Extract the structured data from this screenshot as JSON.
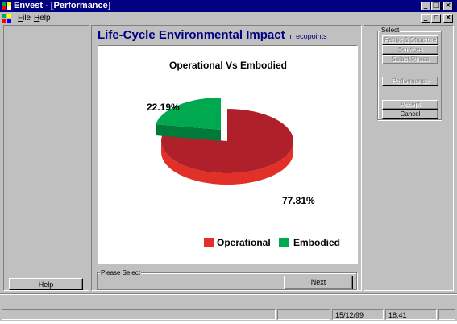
{
  "window": {
    "title": "Envest - [Performance]",
    "controls": [
      "minimize",
      "maximize",
      "close"
    ]
  },
  "menubar": {
    "items": [
      {
        "label": "File",
        "accel": "F",
        "rest": "ile"
      },
      {
        "label": "Help",
        "accel": "H",
        "rest": "elp"
      }
    ]
  },
  "main": {
    "heading": "Life-Cycle Environmental Impact",
    "heading_unit": "in ecopoints",
    "instruction_label": "Please Select",
    "next_button": "Next"
  },
  "left": {
    "help_button": "Help"
  },
  "select_panel": {
    "label": "Select",
    "buttons": [
      {
        "label": "Fabric & Structure",
        "enabled": false
      },
      {
        "label": "Services",
        "enabled": false
      },
      {
        "label": "Select Phase",
        "enabled": false
      }
    ],
    "performance_button": {
      "label": "Performance",
      "enabled": false
    },
    "accept_button": {
      "label": "Accept",
      "enabled": false
    },
    "cancel_button": {
      "label": "Cancel",
      "enabled": true
    }
  },
  "status": {
    "date": "15/12/99",
    "time": "18:41"
  },
  "chart_data": {
    "type": "pie",
    "title": "Operational Vs Embodied",
    "categories": [
      "Operational",
      "Embodied"
    ],
    "values": [
      77.81,
      22.19
    ],
    "labels": [
      "77.81%",
      "22.19%"
    ],
    "colors": [
      "#b0202a",
      "#00a850"
    ],
    "three_d": true,
    "exploded": "Embodied",
    "legend": "bottom-right"
  },
  "colors": {
    "titlebar": "#000080",
    "heading": "#000080",
    "face": "#c0c0c0"
  }
}
